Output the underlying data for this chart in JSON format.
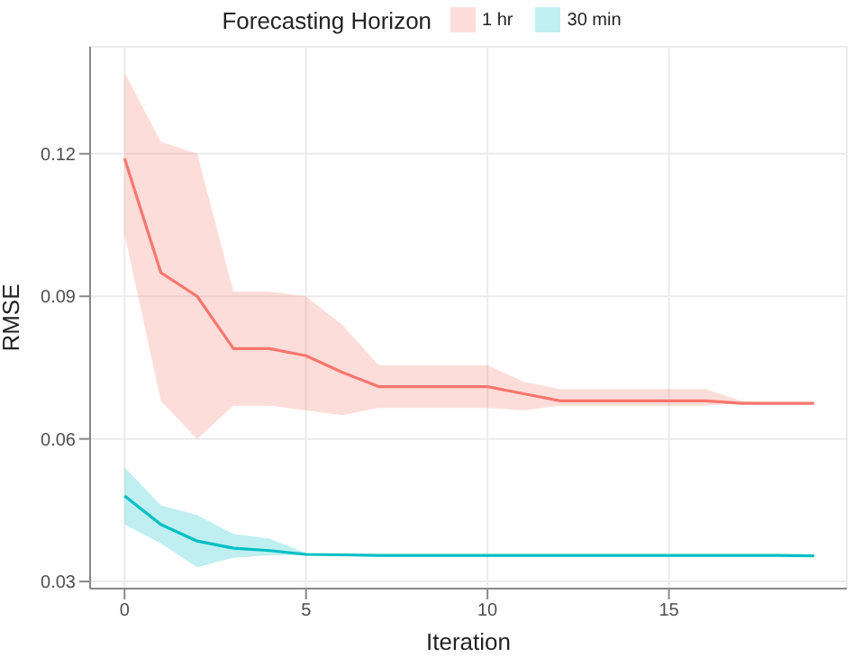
{
  "chart_data": {
    "type": "line",
    "xlabel": "Iteration",
    "ylabel": "RMSE",
    "legend_title": "Forecasting Horizon",
    "legend": "top",
    "grid": true,
    "marker": "none",
    "line_style": "solid",
    "x": [
      0,
      1,
      2,
      3,
      4,
      5,
      6,
      7,
      8,
      9,
      10,
      11,
      12,
      13,
      14,
      15,
      16,
      17,
      18,
      19
    ],
    "xlim": [
      -0.95,
      19.9
    ],
    "xticks": [
      0,
      5,
      10,
      15
    ],
    "ylim": [
      0.0285,
      0.1425
    ],
    "yticks": [
      0.03,
      0.06,
      0.09,
      0.12
    ],
    "series": [
      {
        "name": "1 hr",
        "color": "#f8766d",
        "values": [
          0.119,
          0.095,
          0.09,
          0.079,
          0.079,
          0.0775,
          0.074,
          0.071,
          0.071,
          0.071,
          0.071,
          0.0695,
          0.068,
          0.068,
          0.068,
          0.068,
          0.068,
          0.0675,
          0.0675,
          0.0675
        ],
        "lower": [
          0.103,
          0.068,
          0.06,
          0.067,
          0.067,
          0.066,
          0.065,
          0.0665,
          0.0665,
          0.0665,
          0.0665,
          0.066,
          0.067,
          0.067,
          0.067,
          0.067,
          0.067,
          0.0675,
          0.0675,
          0.0675
        ],
        "upper": [
          0.137,
          0.1225,
          0.12,
          0.091,
          0.091,
          0.09,
          0.084,
          0.0755,
          0.0755,
          0.0755,
          0.0755,
          0.072,
          0.0705,
          0.0705,
          0.0705,
          0.0705,
          0.0705,
          0.068,
          0.0675,
          0.0675
        ]
      },
      {
        "name": "30 min",
        "color": "#00bfc4",
        "values": [
          0.048,
          0.042,
          0.0385,
          0.037,
          0.0365,
          0.0357,
          0.0356,
          0.0355,
          0.0355,
          0.0355,
          0.0355,
          0.0355,
          0.0355,
          0.0355,
          0.0355,
          0.0355,
          0.0355,
          0.0355,
          0.0355,
          0.0354
        ],
        "lower": [
          0.042,
          0.038,
          0.033,
          0.035,
          0.0355,
          0.0355,
          0.0356,
          0.0355,
          0.0355,
          0.0355,
          0.0355,
          0.0355,
          0.0355,
          0.0355,
          0.0355,
          0.0355,
          0.0355,
          0.0355,
          0.0355,
          0.0354
        ],
        "upper": [
          0.054,
          0.046,
          0.044,
          0.04,
          0.039,
          0.036,
          0.0356,
          0.0355,
          0.0355,
          0.0355,
          0.0355,
          0.0355,
          0.0355,
          0.0355,
          0.0355,
          0.0355,
          0.0355,
          0.0355,
          0.0355,
          0.0354
        ]
      }
    ]
  }
}
